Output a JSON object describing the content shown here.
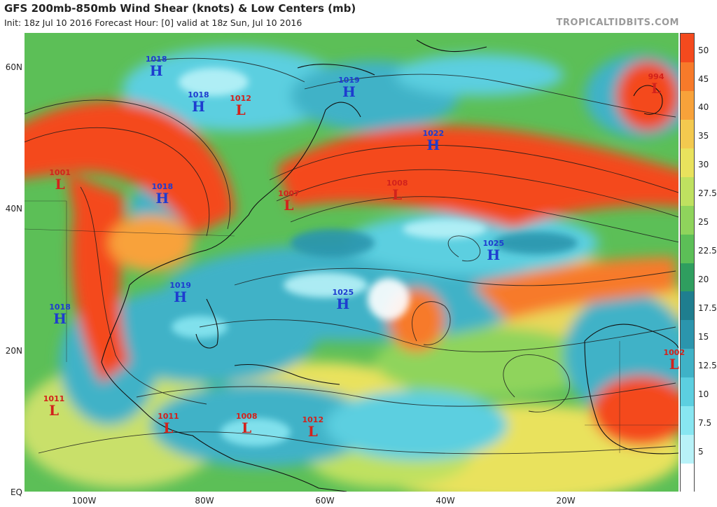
{
  "header": {
    "title": "GFS 200mb-850mb Wind Shear (knots) & Low Centers (mb)",
    "subtitle": "Init: 18z Jul 10 2016   Forecast Hour: [0]   valid at 18z Sun, Jul 10 2016",
    "brand": "TROPICALTIDBITS.COM"
  },
  "axes": {
    "lat_labels": [
      "60N",
      "40N",
      "20N",
      "EQ"
    ],
    "lon_labels": [
      "100W",
      "80W",
      "60W",
      "40W",
      "20W"
    ]
  },
  "colorbar": {
    "labels": [
      "50",
      "45",
      "40",
      "35",
      "30",
      "27.5",
      "25",
      "22.5",
      "20",
      "17.5",
      "15",
      "12.5",
      "10",
      "7.5",
      "5"
    ],
    "colors": [
      "#f44a1e",
      "#f77a2a",
      "#f8a23a",
      "#f3c94f",
      "#e9e25d",
      "#bfe160",
      "#8fd45c",
      "#5cbf57",
      "#2f9e5f",
      "#1f7e8f",
      "#2b95ad",
      "#3fb2c7",
      "#5ccfe0",
      "#88e6f1",
      "#b8f2f8",
      "#ffffff"
    ]
  },
  "pressure_centers": [
    {
      "type": "H",
      "value": "1018",
      "lon": -88,
      "lat": 60
    },
    {
      "type": "H",
      "value": "1018",
      "lon": -81,
      "lat": 55
    },
    {
      "type": "L",
      "value": "1012",
      "lon": -74,
      "lat": 54.5
    },
    {
      "type": "H",
      "value": "1019",
      "lon": -56,
      "lat": 57
    },
    {
      "type": "L",
      "value": "994",
      "lon": -5,
      "lat": 57.5
    },
    {
      "type": "H",
      "value": "1022",
      "lon": -42,
      "lat": 49.5
    },
    {
      "type": "L",
      "value": "1001",
      "lon": -104,
      "lat": 44
    },
    {
      "type": "H",
      "value": "1018",
      "lon": -87,
      "lat": 42
    },
    {
      "type": "L",
      "value": "1007",
      "lon": -66,
      "lat": 41
    },
    {
      "type": "L",
      "value": "1008",
      "lon": -48,
      "lat": 42.5
    },
    {
      "type": "H",
      "value": "1025",
      "lon": -32,
      "lat": 34
    },
    {
      "type": "H",
      "value": "1019",
      "lon": -84,
      "lat": 28
    },
    {
      "type": "H",
      "value": "1025",
      "lon": -57,
      "lat": 27
    },
    {
      "type": "H",
      "value": "1018",
      "lon": -104,
      "lat": 25
    },
    {
      "type": "L",
      "value": "1002",
      "lon": -2,
      "lat": 18.5
    },
    {
      "type": "L",
      "value": "1011",
      "lon": -105,
      "lat": 12
    },
    {
      "type": "L",
      "value": "1011",
      "lon": -86,
      "lat": 9.5
    },
    {
      "type": "L",
      "value": "1008",
      "lon": -73,
      "lat": 9.5
    },
    {
      "type": "L",
      "value": "1012",
      "lon": -62,
      "lat": 9
    }
  ]
}
